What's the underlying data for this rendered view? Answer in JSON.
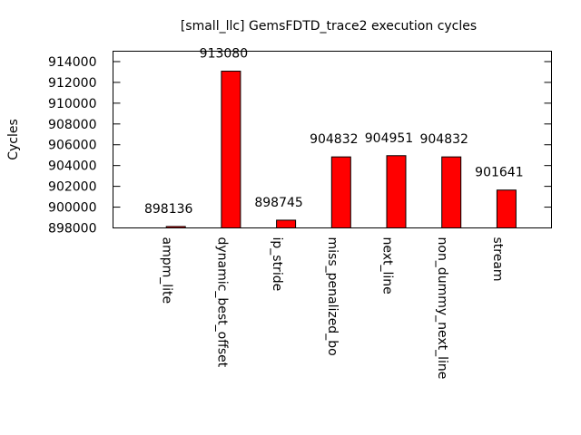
{
  "chart_data": {
    "type": "bar",
    "title": "[small_llc] GemsFDTD_trace2 execution cycles",
    "xlabel": "",
    "ylabel": "Cycles",
    "categories": [
      "ampm_lite",
      "dynamic_best_offset",
      "ip_stride",
      "miss_penalized_bo",
      "next_line",
      "non_dummy_next_line",
      "stream"
    ],
    "values": [
      898136,
      913080,
      898745,
      904832,
      904951,
      904832,
      901641
    ],
    "data_labels": [
      "898136",
      "913080",
      "898745",
      "904832",
      "904951",
      "904832",
      "901641"
    ],
    "ylim": [
      898000,
      915000
    ],
    "yticks": [
      898000,
      900000,
      902000,
      904000,
      906000,
      908000,
      910000,
      912000,
      914000
    ],
    "ytick_labels": [
      "898000",
      "900000",
      "902000",
      "904000",
      "906000",
      "908000",
      "910000",
      "912000",
      "914000"
    ],
    "grid": false,
    "bar_color": "#ff0000"
  }
}
